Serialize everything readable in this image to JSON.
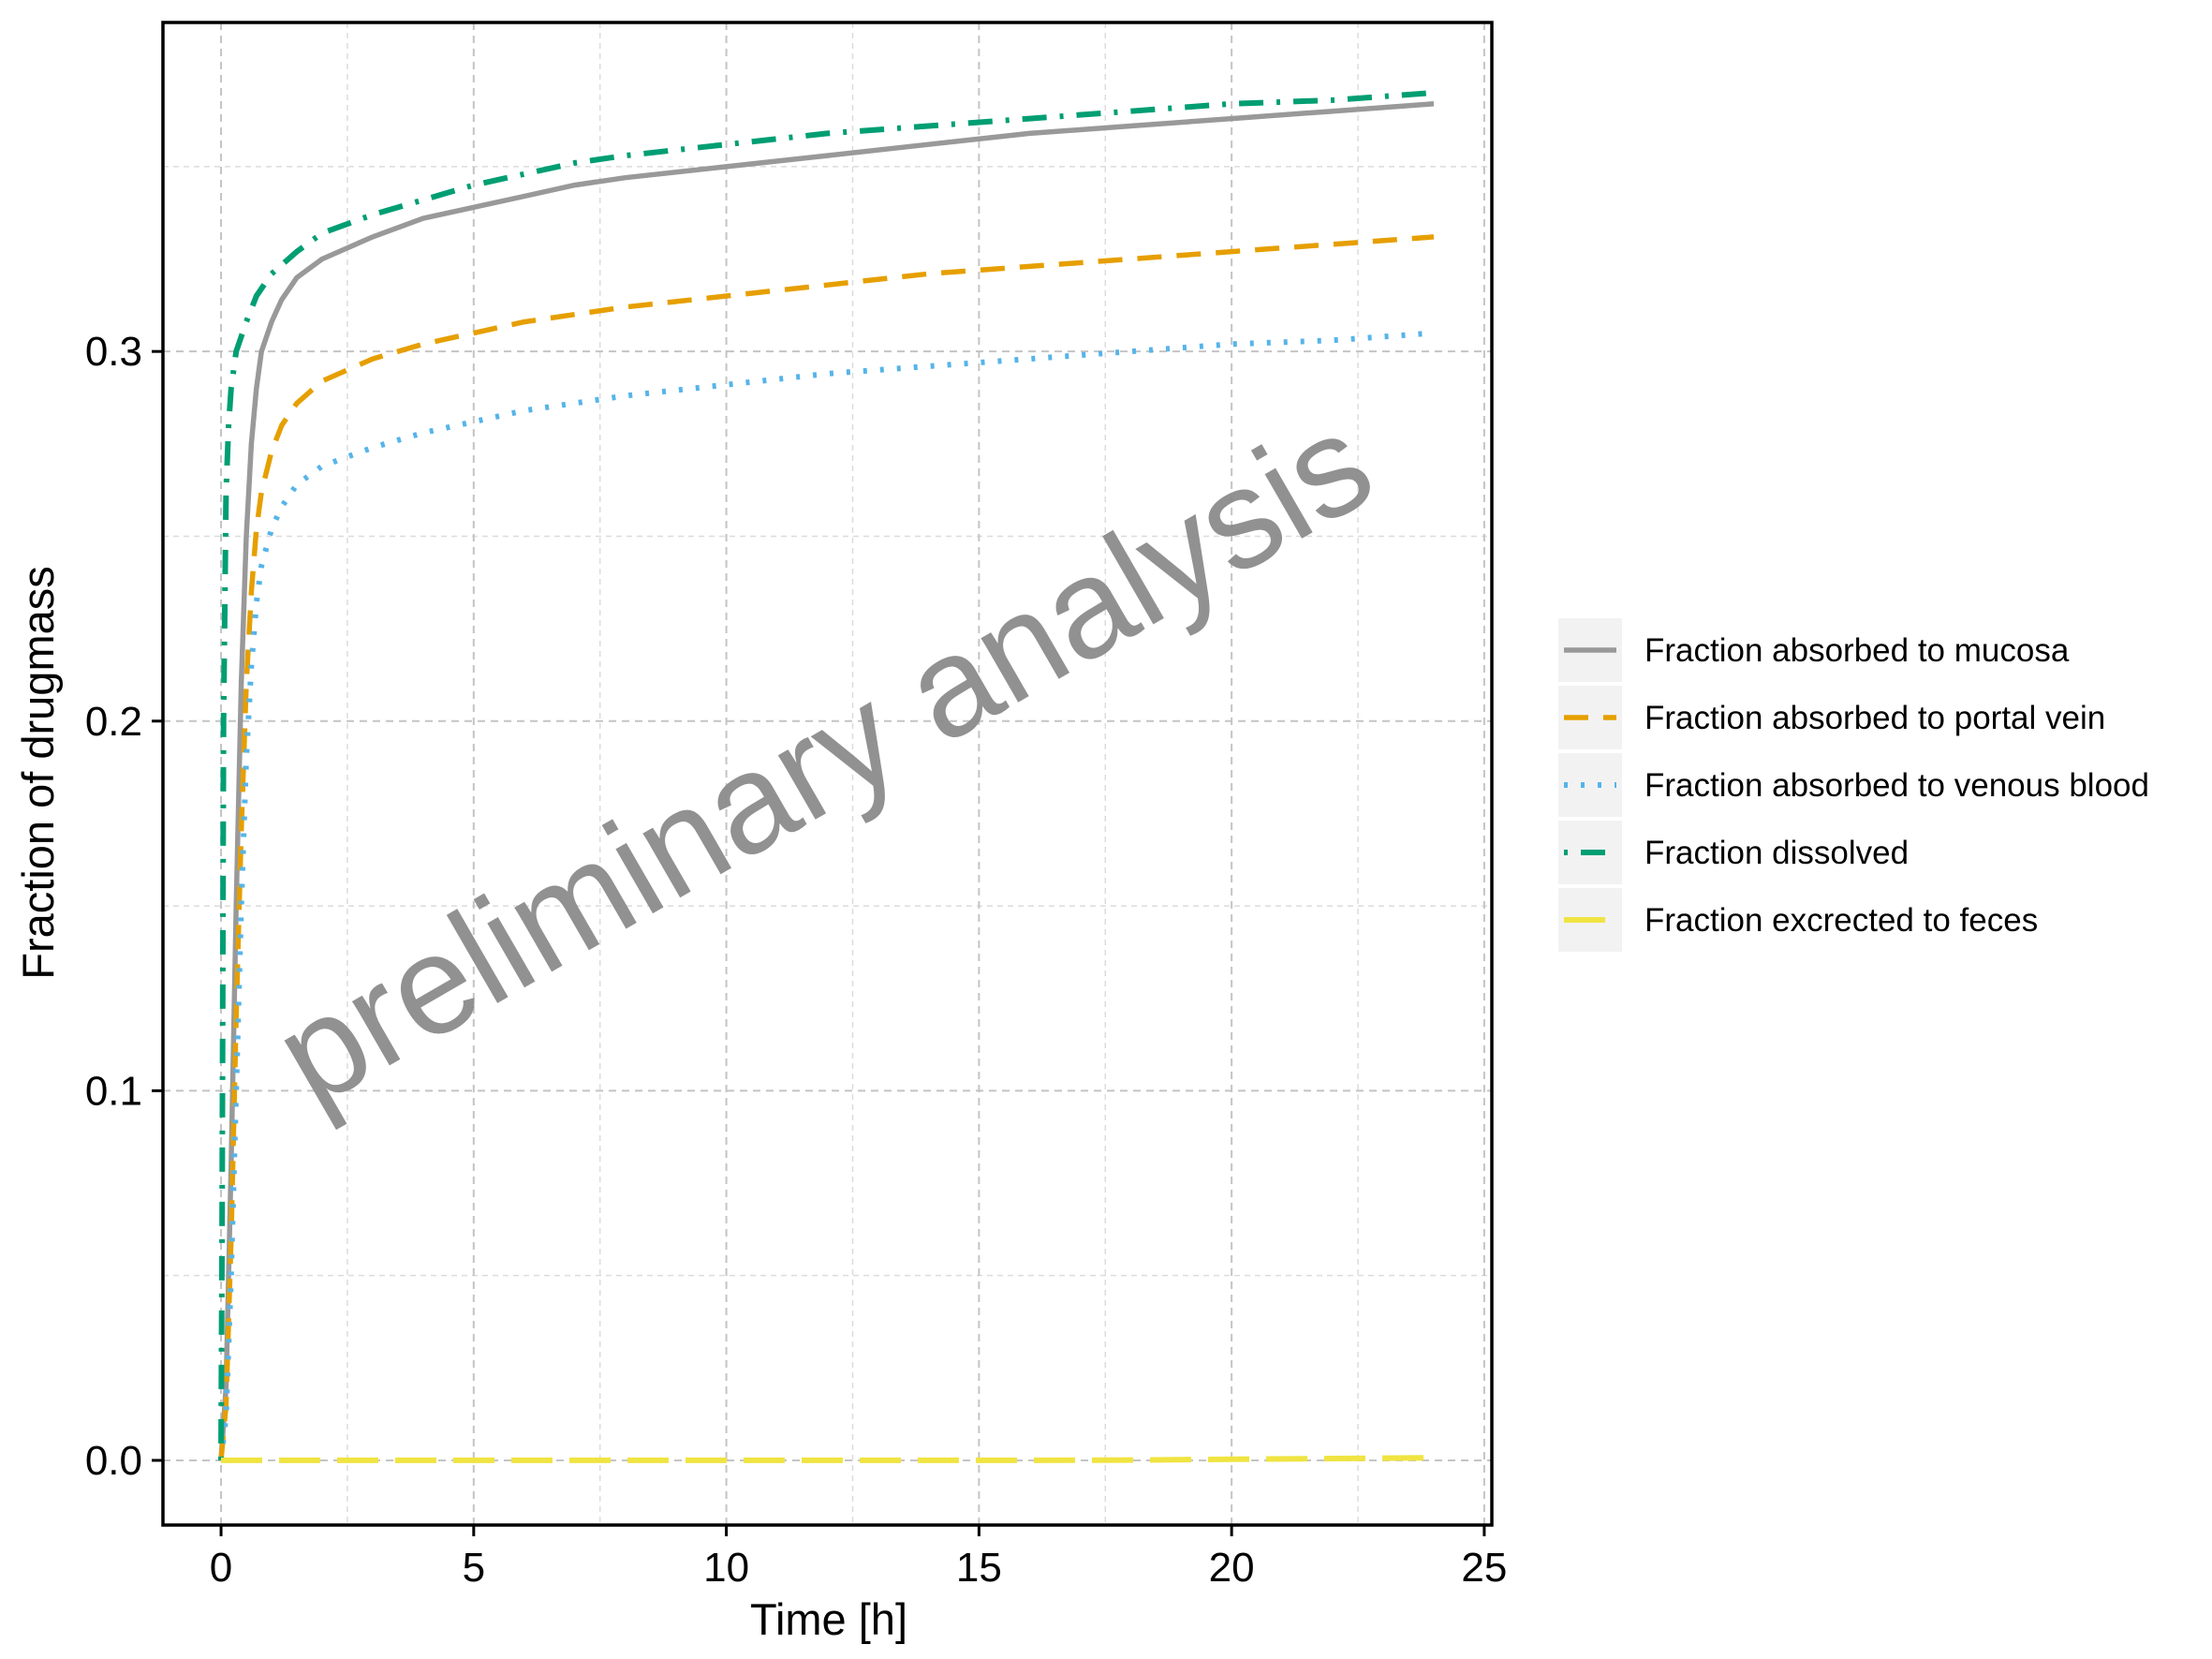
{
  "chart_data": {
    "type": "line",
    "title": "",
    "xlabel": "Time [h]",
    "ylabel": "Fraction of drugmass",
    "xlim": [
      -1.15,
      25.15
    ],
    "ylim": [
      -0.0175,
      0.389
    ],
    "x_ticks": [
      {
        "value": 0,
        "label": "0"
      },
      {
        "value": 5,
        "label": "5"
      },
      {
        "value": 10,
        "label": "10"
      },
      {
        "value": 15,
        "label": "15"
      },
      {
        "value": 20,
        "label": "20"
      },
      {
        "value": 25,
        "label": "25"
      }
    ],
    "y_ticks": [
      {
        "value": 0.0,
        "label": "0.0"
      },
      {
        "value": 0.1,
        "label": "0.1"
      },
      {
        "value": 0.2,
        "label": "0.2"
      },
      {
        "value": 0.3,
        "label": "0.3"
      }
    ],
    "grid": true,
    "legend_position": "right",
    "watermark": "preliminary analysis",
    "series": [
      {
        "name": "Fraction absorbed to mucosa",
        "color": "#999999",
        "dash": "solid",
        "x": [
          0,
          0.1,
          0.2,
          0.3,
          0.4,
          0.5,
          0.6,
          0.7,
          0.8,
          1.0,
          1.2,
          1.5,
          2,
          3,
          4,
          5,
          6,
          7,
          8,
          10,
          12,
          14,
          16,
          18,
          20,
          22,
          24
        ],
        "y": [
          0,
          0.02,
          0.08,
          0.15,
          0.21,
          0.25,
          0.275,
          0.29,
          0.3,
          0.308,
          0.314,
          0.32,
          0.325,
          0.331,
          0.336,
          0.339,
          0.342,
          0.345,
          0.347,
          0.35,
          0.353,
          0.356,
          0.359,
          0.361,
          0.363,
          0.365,
          0.367
        ]
      },
      {
        "name": "Fraction absorbed to portal vein",
        "color": "#E69F00",
        "dash": "dashed",
        "x": [
          0,
          0.1,
          0.2,
          0.3,
          0.4,
          0.5,
          0.6,
          0.7,
          0.8,
          1.0,
          1.2,
          1.5,
          2,
          3,
          4,
          5,
          6,
          7,
          8,
          10,
          12,
          14,
          16,
          18,
          20,
          22,
          24
        ],
        "y": [
          0,
          0.015,
          0.06,
          0.12,
          0.17,
          0.21,
          0.235,
          0.252,
          0.262,
          0.273,
          0.28,
          0.286,
          0.292,
          0.298,
          0.302,
          0.305,
          0.308,
          0.31,
          0.312,
          0.315,
          0.318,
          0.321,
          0.323,
          0.325,
          0.327,
          0.329,
          0.331
        ]
      },
      {
        "name": "Fraction absorbed to venous blood",
        "color": "#56B4E9",
        "dash": "dotted",
        "x": [
          0,
          0.1,
          0.2,
          0.3,
          0.4,
          0.5,
          0.6,
          0.7,
          0.8,
          1.0,
          1.2,
          1.5,
          2,
          3,
          4,
          5,
          6,
          7,
          8,
          10,
          12,
          14,
          16,
          18,
          20,
          22,
          24
        ],
        "y": [
          0,
          0.012,
          0.05,
          0.1,
          0.15,
          0.19,
          0.215,
          0.232,
          0.242,
          0.252,
          0.258,
          0.264,
          0.269,
          0.274,
          0.278,
          0.281,
          0.284,
          0.286,
          0.288,
          0.291,
          0.294,
          0.296,
          0.298,
          0.3,
          0.302,
          0.303,
          0.305
        ]
      },
      {
        "name": "Fraction dissolved",
        "color": "#009E73",
        "dash": "dotdash",
        "x": [
          0,
          0.02,
          0.05,
          0.1,
          0.15,
          0.2,
          0.3,
          0.5,
          0.7,
          1.0,
          1.5,
          2,
          3,
          4,
          5,
          6,
          7,
          8,
          10,
          12,
          14,
          16,
          18,
          20,
          22,
          24
        ],
        "y": [
          0,
          0.06,
          0.2,
          0.262,
          0.28,
          0.29,
          0.3,
          0.308,
          0.315,
          0.321,
          0.327,
          0.332,
          0.337,
          0.341,
          0.345,
          0.348,
          0.351,
          0.353,
          0.356,
          0.359,
          0.361,
          0.363,
          0.365,
          0.367,
          0.368,
          0.37
        ]
      },
      {
        "name": "Fraction excrected to feces",
        "color": "#F0E442",
        "dash": "longdash",
        "x": [
          0,
          4,
          8,
          12,
          16,
          18,
          20,
          22,
          24
        ],
        "y": [
          0,
          0,
          0,
          0,
          0,
          0.0001,
          0.0003,
          0.0005,
          0.0007
        ]
      }
    ]
  }
}
